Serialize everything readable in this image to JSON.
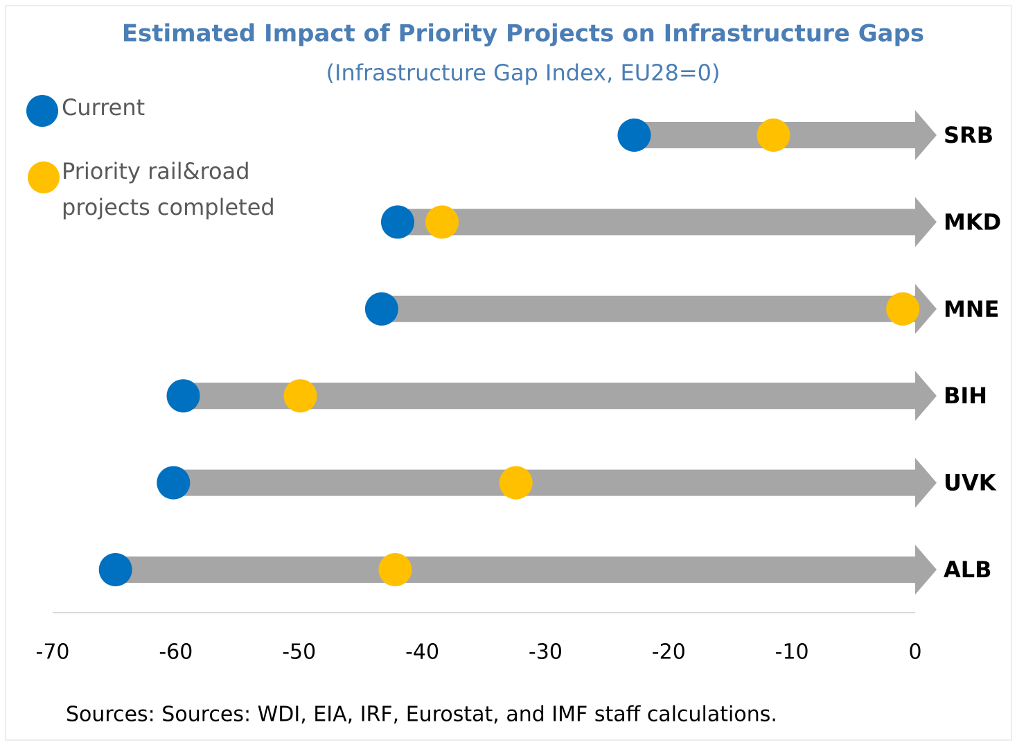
{
  "chart_data": {
    "type": "dumbbell",
    "title": "Estimated Impact of Priority Projects on Infrastructure Gaps",
    "subtitle": "(Infrastructure Gap Index, EU28=0)",
    "categories": [
      "SRB",
      "MKD",
      "MNE",
      "BIH",
      "UVK",
      "ALB"
    ],
    "series": [
      {
        "name": "Current",
        "color": "#0070c0",
        "values": [
          -22.8,
          -42.0,
          -43.3,
          -59.4,
          -60.2,
          -64.9
        ]
      },
      {
        "name": "Priority rail&road projects completed",
        "color": "#ffc000",
        "values": [
          -11.5,
          -38.4,
          -1.0,
          -49.9,
          -32.4,
          -42.2
        ]
      }
    ],
    "arrow_color": "#a6a6a6",
    "xlim": [
      -70,
      0
    ],
    "xticks": [
      -70,
      -60,
      -50,
      -40,
      -30,
      -20,
      -10,
      0
    ],
    "grid": false,
    "legend": "top-left",
    "note": "Sources: Sources: WDI, EIA, IRF, Eurostat, and IMF staff calculations."
  }
}
